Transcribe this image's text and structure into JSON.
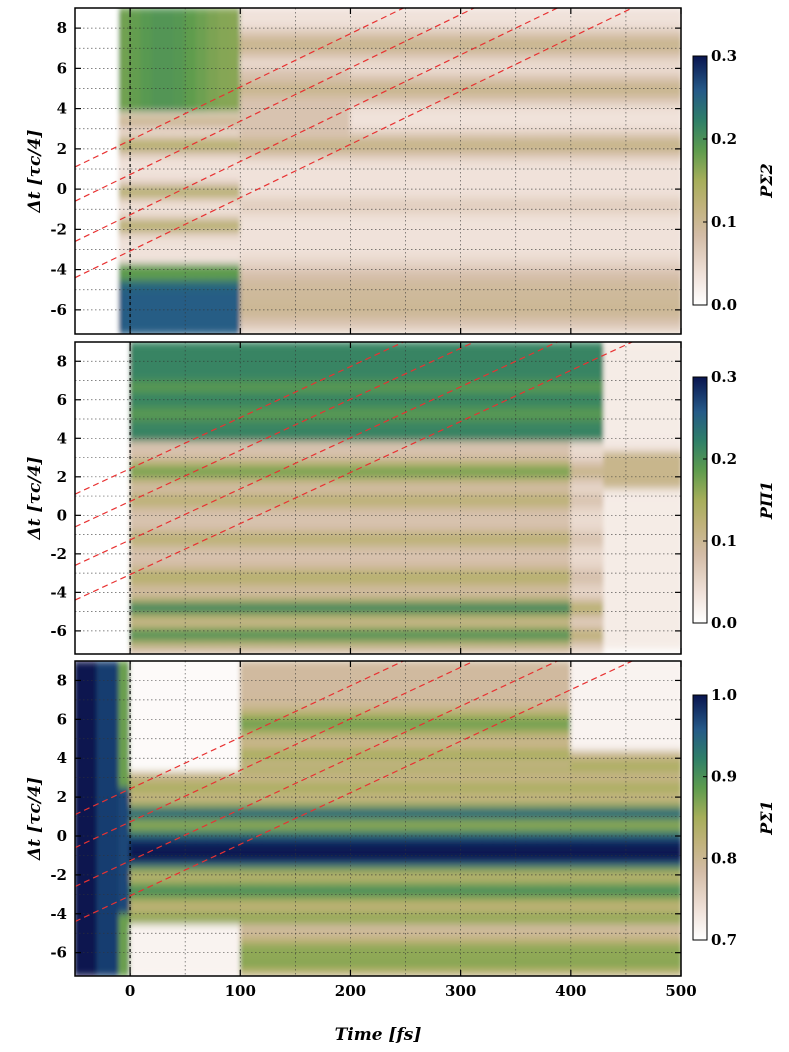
{
  "chart_data": [
    {
      "type": "heatmap",
      "xlabel": "",
      "ylabel": "Δt [τc/4]",
      "xlim": [
        -50,
        500
      ],
      "ylim": [
        -7.2,
        9
      ],
      "x_ticks": [
        "0",
        "100",
        "200",
        "300",
        "400",
        "500"
      ],
      "y_ticks": [
        "-6",
        "-4",
        "-2",
        "0",
        "2",
        "4",
        "6",
        "8"
      ],
      "grid": true,
      "colorbar": {
        "label": "PΣ2",
        "range": [
          0.0,
          0.3
        ],
        "ticks": [
          "0.0",
          "0.1",
          "0.2",
          "0.3"
        ]
      },
      "dashed_lines": [
        {
          "intercept": 1.1,
          "slope": 0.0265
        },
        {
          "intercept": -0.6,
          "slope": 0.0265
        },
        {
          "intercept": -2.6,
          "slope": 0.0265
        },
        {
          "intercept": -4.4,
          "slope": 0.0265
        }
      ]
    },
    {
      "type": "heatmap",
      "xlabel": "",
      "ylabel": "Δt [τc/4]",
      "xlim": [
        -50,
        500
      ],
      "ylim": [
        -7.2,
        9
      ],
      "x_ticks": [
        "0",
        "100",
        "200",
        "300",
        "400",
        "500"
      ],
      "y_ticks": [
        "-6",
        "-4",
        "-2",
        "0",
        "2",
        "4",
        "6",
        "8"
      ],
      "grid": true,
      "colorbar": {
        "label": "PΠ1",
        "range": [
          0.0,
          0.3
        ],
        "ticks": [
          "0.0",
          "0.1",
          "0.2",
          "0.3"
        ]
      },
      "dashed_lines": [
        {
          "intercept": 1.1,
          "slope": 0.0265
        },
        {
          "intercept": -0.6,
          "slope": 0.0265
        },
        {
          "intercept": -2.6,
          "slope": 0.0265
        },
        {
          "intercept": -4.4,
          "slope": 0.0265
        }
      ]
    },
    {
      "type": "heatmap",
      "xlabel": "Time [fs]",
      "ylabel": "Δt [τc/4]",
      "xlim": [
        -50,
        500
      ],
      "ylim": [
        -7.2,
        9
      ],
      "x_ticks": [
        "0",
        "100",
        "200",
        "300",
        "400",
        "500"
      ],
      "y_ticks": [
        "-6",
        "-4",
        "-2",
        "0",
        "2",
        "4",
        "6",
        "8"
      ],
      "grid": true,
      "colorbar": {
        "label": "PΣ1",
        "range": [
          0.7,
          1.0
        ],
        "ticks": [
          "0.7",
          "0.8",
          "0.9",
          "1.0"
        ]
      },
      "dashed_lines": [
        {
          "intercept": 1.1,
          "slope": 0.0265
        },
        {
          "intercept": -0.6,
          "slope": 0.0265
        },
        {
          "intercept": -2.6,
          "slope": 0.0265
        },
        {
          "intercept": -4.4,
          "slope": 0.0265
        }
      ]
    }
  ],
  "colors": {
    "colormap": [
      "#ffffff",
      "#e3cdc0",
      "#c6b08a",
      "#b6b060",
      "#86a84e",
      "#4f9452",
      "#2f7a6a",
      "#24548a",
      "#0a1a5a"
    ],
    "dashed": "#e83232"
  }
}
